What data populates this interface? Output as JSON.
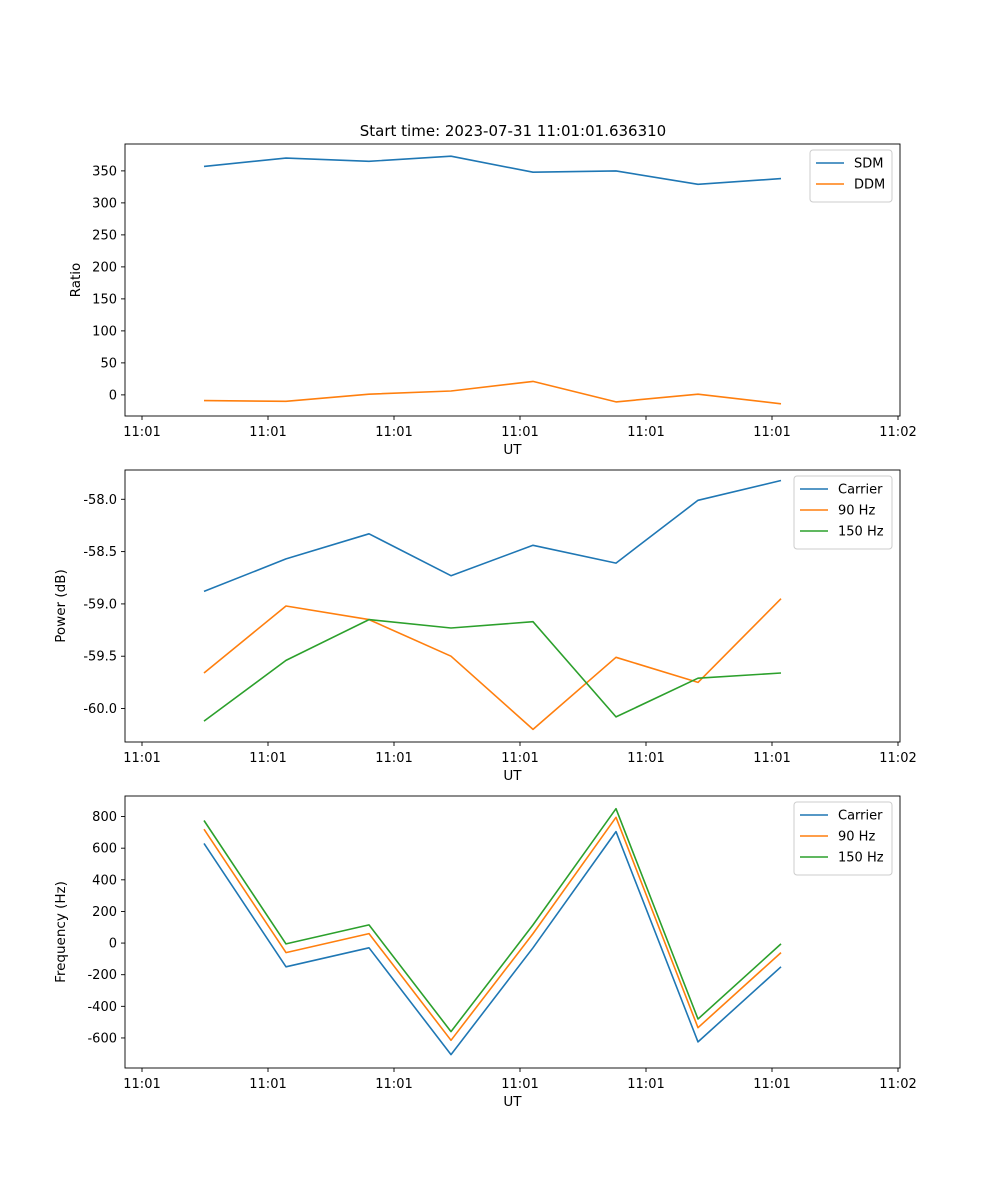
{
  "figure_title": "Start time: 2023-07-31 11:01:01.636310",
  "chart_data": [
    {
      "type": "line",
      "title": "Start time: 2023-07-31 11:01:01.636310",
      "xlabel": "UT",
      "ylabel": "Ratio",
      "x_ticks": [
        "11:01",
        "11:01",
        "11:01",
        "11:01",
        "11:01",
        "11:01",
        "11:02"
      ],
      "y_ticks": [
        "0",
        "50",
        "100",
        "150",
        "200",
        "250",
        "300",
        "350"
      ],
      "ylim": [
        -33,
        392
      ],
      "legend_position": "top-right",
      "series": [
        {
          "name": "SDM",
          "color": "#1f77b4",
          "values": [
            357,
            370,
            365,
            373,
            348,
            350,
            329,
            338
          ]
        },
        {
          "name": "DDM",
          "color": "#ff7f0e",
          "values": [
            -9,
            -10,
            1,
            6,
            21,
            -11,
            1,
            -14
          ]
        }
      ]
    },
    {
      "type": "line",
      "title": "",
      "xlabel": "UT",
      "ylabel": "Power (dB)",
      "x_ticks": [
        "11:01",
        "11:01",
        "11:01",
        "11:01",
        "11:01",
        "11:01",
        "11:02"
      ],
      "y_ticks": [
        "-60.0",
        "-59.5",
        "-59.0",
        "-58.5",
        "-58.0"
      ],
      "ylim": [
        -60.32,
        -57.72
      ],
      "legend_position": "top-right",
      "series": [
        {
          "name": "Carrier",
          "color": "#1f77b4",
          "values": [
            -58.88,
            -58.57,
            -58.33,
            -58.73,
            -58.44,
            -58.61,
            -58.01,
            -57.82
          ]
        },
        {
          "name": "90 Hz",
          "color": "#ff7f0e",
          "values": [
            -59.66,
            -59.02,
            -59.15,
            -59.5,
            -60.2,
            -59.51,
            -59.75,
            -58.95
          ]
        },
        {
          "name": "150 Hz",
          "color": "#2ca02c",
          "values": [
            -60.12,
            -59.54,
            -59.15,
            -59.23,
            -59.17,
            -60.08,
            -59.71,
            -59.66
          ]
        }
      ]
    },
    {
      "type": "line",
      "title": "",
      "xlabel": "UT",
      "ylabel": "Frequency (Hz)",
      "x_ticks": [
        "11:01",
        "11:01",
        "11:01",
        "11:01",
        "11:01",
        "11:01",
        "11:02"
      ],
      "y_ticks": [
        "-600",
        "-400",
        "-200",
        "0",
        "200",
        "400",
        "600",
        "800"
      ],
      "ylim": [
        -790,
        930
      ],
      "legend_position": "top-right",
      "series": [
        {
          "name": "Carrier",
          "color": "#1f77b4",
          "values": [
            630,
            -150,
            -30,
            -705,
            -30,
            705,
            -625,
            -150
          ]
        },
        {
          "name": "90 Hz",
          "color": "#ff7f0e",
          "values": [
            720,
            -60,
            60,
            -615,
            60,
            795,
            -535,
            -60
          ]
        },
        {
          "name": "150 Hz",
          "color": "#2ca02c",
          "values": [
            775,
            -5,
            115,
            -560,
            115,
            850,
            -480,
            -5
          ]
        }
      ]
    }
  ]
}
